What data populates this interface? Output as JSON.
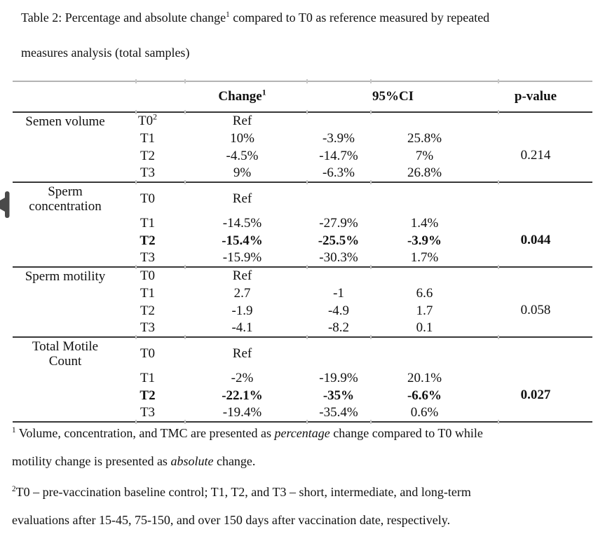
{
  "title": {
    "part1": "Table 2: Percentage and absolute change",
    "sup": "1",
    "part2": " compared to T0 as reference measured by repeated",
    "line2": "measures analysis (total samples)"
  },
  "colors": {
    "rule_dark": "#383838",
    "rule_light": "#b3b3b3",
    "text": "#111111",
    "background": "#ffffff"
  },
  "icons": {
    "margin_marker": "left-tack-marker"
  },
  "table": {
    "header": {
      "change": "Change",
      "change_sup": "1",
      "ci": "95%CI",
      "p": "p-value"
    },
    "sections": [
      {
        "name_line1": "Semen volume",
        "name_line2": "",
        "p_value": "0.214",
        "rows": [
          {
            "t": "T0",
            "t_sup": "2",
            "change": "Ref",
            "ci_low": "",
            "ci_high": ""
          },
          {
            "t": "T1",
            "change": "10%",
            "ci_low": "-3.9%",
            "ci_high": "25.8%"
          },
          {
            "t": "T2",
            "change": "-4.5%",
            "ci_low": "-14.7%",
            "ci_high": "7%"
          },
          {
            "t": "T3",
            "change": "9%",
            "ci_low": "-6.3%",
            "ci_high": "26.8%"
          }
        ]
      },
      {
        "name_line1": "Sperm",
        "name_line2": "concentration",
        "p_value": "0.044",
        "rows": [
          {
            "t": "T0",
            "change": "Ref",
            "ci_low": "",
            "ci_high": ""
          },
          {
            "t": "T1",
            "change": "-14.5%",
            "ci_low": "-27.9%",
            "ci_high": "1.4%"
          },
          {
            "t": "T2",
            "change": "-15.4%",
            "ci_low": "-25.5%",
            "ci_high": "-3.9%"
          },
          {
            "t": "T3",
            "change": "-15.9%",
            "ci_low": "-30.3%",
            "ci_high": "1.7%"
          }
        ]
      },
      {
        "name_line1": "Sperm motility",
        "name_line2": "",
        "p_value": "0.058",
        "rows": [
          {
            "t": "T0",
            "change": "Ref",
            "ci_low": "",
            "ci_high": ""
          },
          {
            "t": "T1",
            "change": "2.7",
            "ci_low": "-1",
            "ci_high": "6.6"
          },
          {
            "t": "T2",
            "change": "-1.9",
            "ci_low": "-4.9",
            "ci_high": "1.7"
          },
          {
            "t": "T3",
            "change": "-4.1",
            "ci_low": "-8.2",
            "ci_high": "0.1"
          }
        ]
      },
      {
        "name_line1": "Total Motile",
        "name_line2": "Count",
        "p_value": "0.027",
        "rows": [
          {
            "t": "T0",
            "change": "Ref",
            "ci_low": "",
            "ci_high": ""
          },
          {
            "t": "T1",
            "change": "-2%",
            "ci_low": "-19.9%",
            "ci_high": "20.1%"
          },
          {
            "t": "T2",
            "change": "-22.1%",
            "ci_low": "-35%",
            "ci_high": "-6.6%"
          },
          {
            "t": "T3",
            "change": "-19.4%",
            "ci_low": "-35.4%",
            "ci_high": "0.6%"
          }
        ]
      }
    ]
  },
  "footnotes": {
    "f1_sup": "1",
    "f1_part1": " Volume, concentration, and TMC are presented as ",
    "f1_italic1": "percentage",
    "f1_part2": " change compared to T0 while",
    "f1_line2a": "motility change is presented as ",
    "f1_italic2": "absolute",
    "f1_line2b": " change.",
    "f2_sup": "2",
    "f2_line1": "T0 – pre-vaccination baseline control; T1, T2, and T3 – short, intermediate, and long-term",
    "f2_line2": "evaluations after 15-45, 75-150, and over 150 days after vaccination date, respectively."
  }
}
